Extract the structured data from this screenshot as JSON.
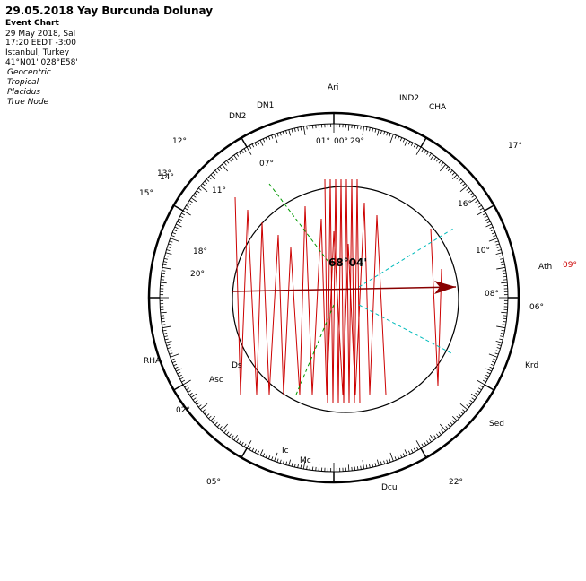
{
  "header": {
    "title": "29.05.2018 Yay Burcunda Dolunay",
    "subtitle": "Event Chart",
    "lines": [
      "29 May 2018, Sal",
      "17:20  EEDT  -3:00",
      "Istanbul, Turkey",
      "41°N01' 028°E58'"
    ],
    "settings": [
      "Geocentric",
      "Tropical",
      "Placidus",
      "True Node"
    ]
  },
  "chart": {
    "center_label": "68°04'",
    "labels": [
      "DN1",
      "DN2",
      "Ari",
      "IND2",
      "CHA",
      "Ath",
      "Krd",
      "Sed",
      "RHA",
      "Dcu",
      "Asc",
      "Mc",
      "Ds",
      "Ic",
      "01°",
      "00°",
      "29°",
      "12°",
      "14°",
      "10°",
      "08°",
      "06°",
      "16°",
      "07°",
      "20°",
      "18°",
      "22°",
      "15°",
      "17°",
      "13°",
      "11°",
      "09°",
      "02°",
      "05°"
    ]
  }
}
